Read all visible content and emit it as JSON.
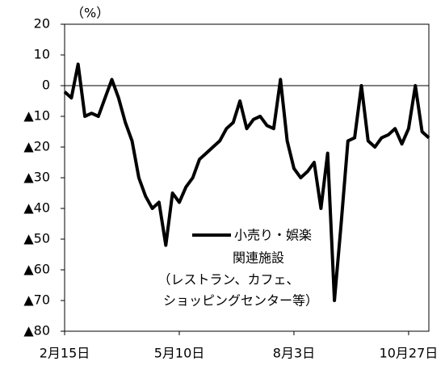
{
  "chart_data": {
    "type": "line",
    "y_label": "（%）",
    "categories": [
      "2月15日",
      null,
      null,
      null,
      null,
      null,
      null,
      null,
      null,
      null,
      null,
      null,
      null,
      null,
      null,
      null,
      null,
      "5月10日",
      null,
      null,
      null,
      null,
      null,
      null,
      null,
      null,
      null,
      null,
      null,
      null,
      null,
      null,
      null,
      null,
      "8月3日",
      null,
      null,
      null,
      null,
      null,
      null,
      null,
      null,
      null,
      null,
      null,
      null,
      null,
      null,
      null,
      null,
      "10月27日",
      null,
      null,
      null
    ],
    "series": [
      {
        "name": "小売り・娯楽",
        "color": "#000000",
        "values": [
          -2,
          -4,
          7,
          -10,
          -9,
          -10,
          -4,
          2,
          -4,
          -12,
          -18,
          -30,
          -36,
          -40,
          -38,
          -52,
          -35,
          -38,
          -33,
          -30,
          -24,
          -22,
          -20,
          -18,
          -14,
          -12,
          -5,
          -14,
          -11,
          -10,
          -13,
          -14,
          2,
          -18,
          -27,
          -30,
          -28,
          -25,
          -40,
          -22,
          -70,
          -45,
          -18,
          -17,
          0,
          -18,
          -20,
          -17,
          -16,
          -14,
          -19,
          -14,
          0,
          -15,
          -17
        ]
      }
    ],
    "annotations": [
      "関連施設",
      "（レストラン、カフェ、",
      "ショッピングセンター等）"
    ],
    "ylim": [
      -80,
      20
    ],
    "yticks": [
      {
        "value": -80,
        "label": "▲80"
      },
      {
        "value": -70,
        "label": "▲70"
      },
      {
        "value": -60,
        "label": "▲60"
      },
      {
        "value": -50,
        "label": "▲50"
      },
      {
        "value": -40,
        "label": "▲40"
      },
      {
        "value": -30,
        "label": "▲30"
      },
      {
        "value": -20,
        "label": "▲20"
      },
      {
        "value": -10,
        "label": "▲10"
      },
      0,
      10,
      20
    ]
  }
}
